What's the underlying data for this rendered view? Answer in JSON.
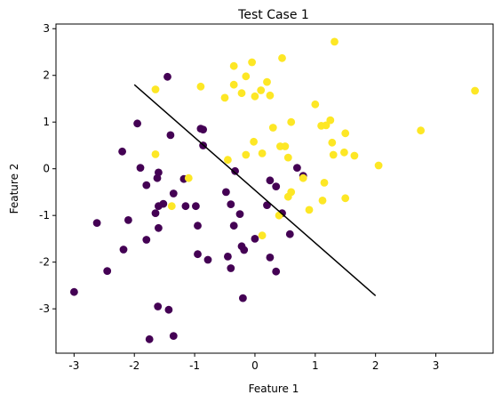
{
  "chart_data": {
    "type": "scatter",
    "title": "Test Case 1",
    "xlabel": "Feature 1",
    "ylabel": "Feature 2",
    "xlim": [
      -3.3,
      3.95
    ],
    "ylim": [
      -3.95,
      3.1
    ],
    "xticks": [
      -3,
      -2,
      -1,
      0,
      1,
      2,
      3
    ],
    "yticks": [
      -3,
      -2,
      -1,
      0,
      1,
      2,
      3
    ],
    "grid": false,
    "colors": {
      "class0": "#440154",
      "class1": "#fde725",
      "line": "#000000"
    },
    "series": [
      {
        "points": [
          [
            -1.45,
            1.97
          ],
          [
            -1.95,
            0.97
          ],
          [
            -1.4,
            0.72
          ],
          [
            -0.9,
            0.86
          ],
          [
            -0.86,
            0.84
          ],
          [
            -0.86,
            0.5
          ],
          [
            -2.2,
            0.37
          ],
          [
            -1.9,
            0.02
          ],
          [
            -1.6,
            -0.08
          ],
          [
            -1.8,
            -0.35
          ],
          [
            -1.62,
            -0.2
          ],
          [
            -1.18,
            -0.22
          ],
          [
            -0.33,
            -0.05
          ],
          [
            -1.35,
            -0.53
          ],
          [
            -1.52,
            -0.75
          ],
          [
            -1.6,
            -0.8
          ],
          [
            -1.65,
            -0.95
          ],
          [
            -1.15,
            -0.8
          ],
          [
            -2.1,
            -1.1
          ],
          [
            -2.62,
            -1.16
          ],
          [
            -1.6,
            -1.27
          ],
          [
            -1.8,
            -1.52
          ],
          [
            -2.18,
            -1.73
          ],
          [
            -2.45,
            -2.19
          ],
          [
            -0.98,
            -0.8
          ],
          [
            -0.95,
            -1.22
          ],
          [
            -0.48,
            -0.5
          ],
          [
            -0.4,
            -0.76
          ],
          [
            -0.25,
            -0.97
          ],
          [
            -0.35,
            -1.22
          ],
          [
            -0.95,
            -1.83
          ],
          [
            -0.45,
            -1.88
          ],
          [
            -0.22,
            -1.66
          ],
          [
            -0.18,
            -1.74
          ],
          [
            -0.78,
            -1.95
          ],
          [
            -0.4,
            -2.13
          ],
          [
            -0.2,
            -2.77
          ],
          [
            -1.61,
            -2.95
          ],
          [
            -1.43,
            -3.02
          ],
          [
            -3.0,
            -2.64
          ],
          [
            -1.35,
            -3.58
          ],
          [
            -1.75,
            -3.65
          ],
          [
            0.25,
            -0.25
          ],
          [
            0.35,
            -0.38
          ],
          [
            0.2,
            -0.78
          ],
          [
            0.45,
            -0.95
          ],
          [
            0.0,
            -1.5
          ],
          [
            0.58,
            -1.4
          ],
          [
            0.25,
            -1.9
          ],
          [
            0.35,
            -2.2
          ],
          [
            0.7,
            0.02
          ],
          [
            0.8,
            -0.15
          ]
        ]
      },
      {
        "points": [
          [
            1.32,
            2.72
          ],
          [
            0.45,
            2.37
          ],
          [
            -0.35,
            2.2
          ],
          [
            -0.05,
            2.28
          ],
          [
            -0.15,
            1.98
          ],
          [
            -1.65,
            1.7
          ],
          [
            -0.9,
            1.76
          ],
          [
            -0.35,
            1.8
          ],
          [
            0.2,
            1.86
          ],
          [
            0.1,
            1.68
          ],
          [
            -0.22,
            1.62
          ],
          [
            0.0,
            1.55
          ],
          [
            0.25,
            1.57
          ],
          [
            -0.5,
            1.52
          ],
          [
            3.65,
            1.67
          ],
          [
            1.0,
            1.38
          ],
          [
            0.6,
            1.0
          ],
          [
            1.25,
            1.04
          ],
          [
            1.1,
            0.92
          ],
          [
            1.18,
            0.93
          ],
          [
            1.5,
            0.76
          ],
          [
            0.3,
            0.88
          ],
          [
            0.42,
            0.48
          ],
          [
            0.5,
            0.48
          ],
          [
            -0.02,
            0.58
          ],
          [
            0.55,
            0.24
          ],
          [
            0.12,
            0.33
          ],
          [
            -0.15,
            0.3
          ],
          [
            1.28,
            0.56
          ],
          [
            1.48,
            0.35
          ],
          [
            1.3,
            0.3
          ],
          [
            1.65,
            0.28
          ],
          [
            2.75,
            0.82
          ],
          [
            -0.45,
            0.19
          ],
          [
            2.05,
            0.07
          ],
          [
            0.8,
            -0.2
          ],
          [
            1.15,
            -0.3
          ],
          [
            -1.65,
            0.31
          ],
          [
            -1.1,
            -0.2
          ],
          [
            -1.38,
            -0.8
          ],
          [
            0.6,
            -0.5
          ],
          [
            0.55,
            -0.6
          ],
          [
            1.12,
            -0.68
          ],
          [
            1.5,
            -0.63
          ],
          [
            0.9,
            -0.88
          ],
          [
            0.4,
            -1.0
          ],
          [
            0.12,
            -1.43
          ]
        ]
      }
    ],
    "boundary_line": {
      "x": [
        -2.0,
        2.0
      ],
      "y": [
        1.8,
        -2.72
      ]
    }
  }
}
